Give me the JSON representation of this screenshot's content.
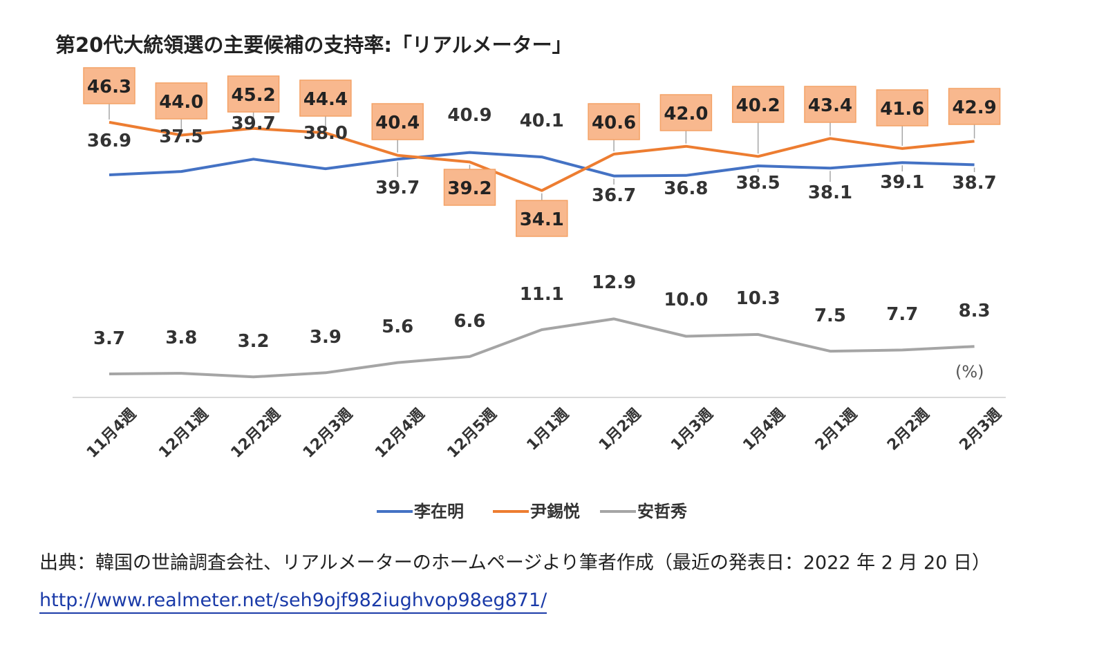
{
  "chart_data": {
    "type": "line",
    "title": "第20代大統領選の主要候補の支持率:「リアルメーター」",
    "unit": "(%)",
    "categories": [
      "11月4週",
      "12月1週",
      "12月2週",
      "12月3週",
      "12月4週",
      "12月5週",
      "1月1週",
      "1月2週",
      "1月3週",
      "1月4週",
      "2月1週",
      "2月2週",
      "2月3週"
    ],
    "series": [
      {
        "name": "李在明",
        "color": "#4472c4",
        "values": [
          36.9,
          37.5,
          39.7,
          38.0,
          39.7,
          40.9,
          40.1,
          36.7,
          36.8,
          38.5,
          38.1,
          39.1,
          38.7
        ],
        "labels": [
          "36.9",
          "37.5",
          "39.7",
          "38.0",
          "39.7",
          "40.9",
          "40.1",
          "36.7",
          "36.8",
          "38.5",
          "38.1",
          "39.1",
          "38.7"
        ]
      },
      {
        "name": "尹錫悦",
        "color": "#ed7d31",
        "values": [
          46.3,
          44.0,
          45.2,
          44.4,
          40.4,
          39.2,
          34.1,
          40.6,
          42.0,
          40.2,
          43.4,
          41.6,
          42.9
        ],
        "labels": [
          "46.3",
          "44.0",
          "45.2",
          "44.4",
          "40.4",
          "39.2",
          "34.1",
          "40.6",
          "42.0",
          "40.2",
          "43.4",
          "41.6",
          "42.9"
        ]
      },
      {
        "name": "安哲秀",
        "color": "#a5a5a5",
        "values": [
          3.7,
          3.8,
          3.2,
          3.9,
          5.6,
          6.6,
          11.1,
          12.9,
          10.0,
          10.3,
          7.5,
          7.7,
          8.3
        ],
        "labels": [
          "3.7",
          "3.8",
          "3.2",
          "3.9",
          "5.6",
          "6.6",
          "11.1",
          "12.9",
          "10.0",
          "10.3",
          "7.5",
          "7.7",
          "8.3"
        ]
      }
    ],
    "legend_position": "bottom",
    "grid": false
  },
  "source": {
    "text": "出典：韓国の世論調査会社、リアルメーターのホームページより筆者作成（最近の発表日：2022 年 2 月 20 日）",
    "url": "http://www.realmeter.net/seh9ojf982iughvop98eg871/"
  }
}
